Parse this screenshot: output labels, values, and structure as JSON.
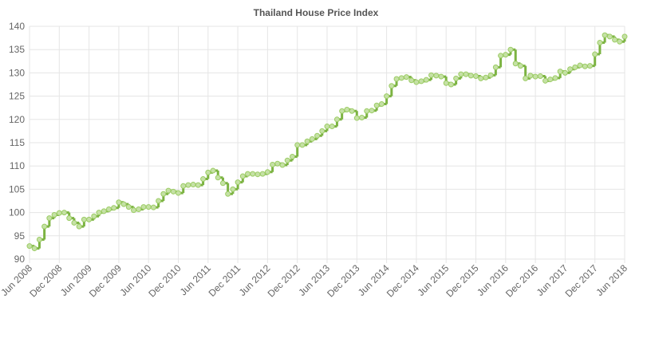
{
  "chart_data": {
    "type": "line",
    "stepped": true,
    "title": "Thailand House Price Index",
    "categories": [
      "Jun 2008",
      null,
      null,
      null,
      null,
      null,
      "Dec 2008",
      null,
      null,
      null,
      null,
      null,
      "Jun 2009",
      null,
      null,
      null,
      null,
      null,
      "Dec 2009",
      null,
      null,
      null,
      null,
      null,
      "Jun 2010",
      null,
      null,
      null,
      null,
      null,
      "Dec 2010",
      null,
      null,
      null,
      null,
      null,
      "Jun 2011",
      null,
      null,
      null,
      null,
      null,
      "Dec 2011",
      null,
      null,
      null,
      null,
      null,
      "Jun 2012",
      null,
      null,
      null,
      null,
      null,
      "Dec 2012",
      null,
      null,
      null,
      null,
      null,
      "Jun 2013",
      null,
      null,
      null,
      null,
      null,
      "Dec 2013",
      null,
      null,
      null,
      null,
      null,
      "Jun 2014",
      null,
      null,
      null,
      null,
      null,
      "Dec 2014",
      null,
      null,
      null,
      null,
      null,
      "Jun 2015",
      null,
      null,
      null,
      null,
      null,
      "Dec 2015",
      null,
      null,
      null,
      null,
      null,
      "Jun 2016",
      null,
      null,
      null,
      null,
      null,
      "Dec 2016",
      null,
      null,
      null,
      null,
      null,
      "Jun 2017",
      null,
      null,
      null,
      null,
      null,
      "Dec 2017",
      null,
      null,
      null,
      null,
      null,
      "Jun 2018"
    ],
    "values": [
      92.8,
      92.3,
      94.2,
      97,
      98.8,
      99.5,
      99.9,
      100,
      98.8,
      97.8,
      97,
      98.5,
      98.5,
      99.2,
      100,
      100.3,
      100.7,
      101,
      102.2,
      101.8,
      101.2,
      100.5,
      100.7,
      101.2,
      101.2,
      101.1,
      102.5,
      104,
      104.7,
      104.5,
      104.2,
      105.7,
      105.9,
      106,
      105.9,
      107.2,
      108.6,
      109,
      107.5,
      106.3,
      104,
      105,
      106.5,
      107.8,
      108.3,
      108.3,
      108.2,
      108.3,
      108.7,
      110.3,
      110.5,
      110.2,
      111.2,
      112,
      114.5,
      114.5,
      115.3,
      115.8,
      116.5,
      117.5,
      118.5,
      118.5,
      120,
      121.8,
      122.1,
      121.8,
      120.3,
      120.4,
      121.8,
      121.9,
      123,
      123.3,
      125,
      127.2,
      128.7,
      128.9,
      129.1,
      128.4,
      128,
      128.2,
      128.5,
      129.5,
      129.4,
      129.2,
      127.8,
      127.5,
      128.8,
      129.7,
      129.7,
      129.4,
      129.3,
      128.8,
      129,
      129.5,
      131.2,
      133.7,
      133.9,
      135,
      132,
      131.5,
      128.8,
      129.4,
      129.2,
      129.3,
      128.3,
      128.6,
      128.9,
      130.3,
      130,
      130.8,
      131.2,
      131.6,
      131.4,
      131.5,
      134,
      136.5,
      138.1,
      137.8,
      137.1,
      136.7,
      137.8
    ],
    "color": "#7cb342",
    "ylim": [
      90,
      140
    ],
    "yticks": [
      90,
      95,
      100,
      105,
      110,
      115,
      120,
      125,
      130,
      135,
      140
    ],
    "grid": true
  }
}
